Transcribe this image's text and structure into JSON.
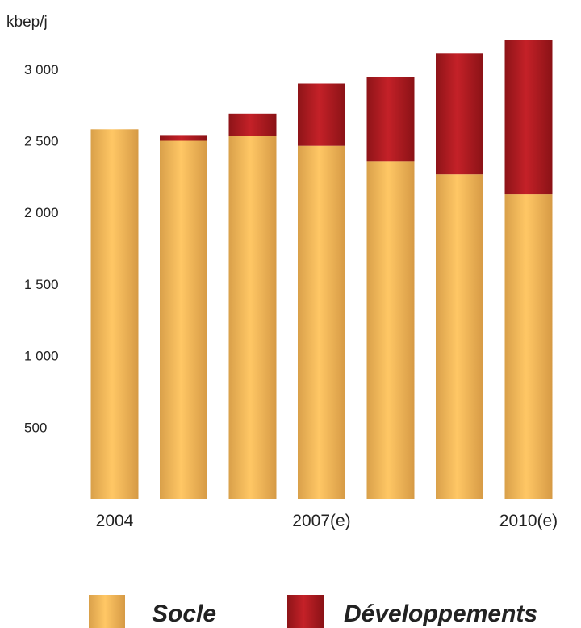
{
  "chart_data": {
    "type": "bar",
    "stacked": true,
    "unit_label": "kbep/j",
    "categories": [
      "2004",
      "",
      "",
      "2007(e)",
      "",
      "",
      "2010(e)"
    ],
    "series": [
      {
        "name": "Socle",
        "values": [
          2580,
          2500,
          2535,
          2465,
          2355,
          2265,
          2130
        ],
        "color": "#F2B758"
      },
      {
        "name": "Développements",
        "values": [
          0,
          40,
          155,
          435,
          590,
          845,
          1075
        ],
        "color": "#B5191E"
      }
    ],
    "yticks": [
      500,
      1000,
      1500,
      2000,
      2500,
      3000
    ],
    "ytick_labels": [
      "500",
      "1 000",
      "1 500",
      "2 000",
      "2 500",
      "3 000"
    ],
    "ylim": [
      0,
      3250
    ],
    "grid": false,
    "legend_position": "bottom",
    "title": "",
    "xlabel": "",
    "ylabel": ""
  }
}
